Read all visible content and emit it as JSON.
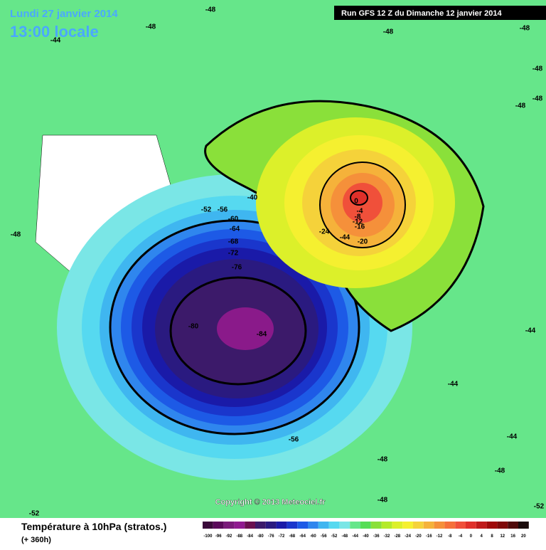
{
  "header": {
    "date": "Lundi 27 janvier 2014",
    "time": "13:00 locale",
    "run": "Run GFS 12 Z du Dimanche 12 janvier 2014"
  },
  "map": {
    "contour_labels": [
      -48,
      -48,
      -44,
      -48,
      -48,
      -48,
      -48,
      -48,
      -52,
      -56,
      -60,
      -64,
      -68,
      -72,
      -76,
      -80,
      -84,
      -56,
      -48,
      -48,
      -48,
      -44,
      -44,
      -44,
      -52,
      -52,
      -48,
      0,
      -4,
      -8,
      -12,
      -16,
      -20,
      -24,
      -44,
      -40
    ],
    "copyright": "Copyright © 2013 Meteociel.fr"
  },
  "footer": {
    "title": "Température à 10hPa (stratos.)",
    "lead": "(+ 360h)"
  },
  "legend": {
    "ticks": [
      -100,
      -96,
      -92,
      -88,
      -84,
      -80,
      -76,
      -72,
      -68,
      -64,
      -60,
      -56,
      -52,
      -48,
      -44,
      -40,
      -36,
      -32,
      -28,
      -24,
      -20,
      -16,
      -12,
      -8,
      -4,
      0,
      4,
      8,
      12,
      16,
      20
    ],
    "colors": [
      "#3a0a3a",
      "#5a0a5a",
      "#7a1a7a",
      "#901a90",
      "#6a1050",
      "#3c1a6a",
      "#2a1a80",
      "#1a1aa8",
      "#1a36cc",
      "#1d5ae6",
      "#2f86ee",
      "#3fb6f0",
      "#56d9f0",
      "#7ae6e6",
      "#66e68a",
      "#55dd55",
      "#8ae03a",
      "#b4ea2a",
      "#dcf02a",
      "#f5f030",
      "#f5d23a",
      "#f5b23a",
      "#f5903a",
      "#f5703a",
      "#f0503a",
      "#e0302a",
      "#c01a1a",
      "#a00a0a",
      "#800a0a",
      "#500a0a",
      "#1a0a0a"
    ]
  }
}
